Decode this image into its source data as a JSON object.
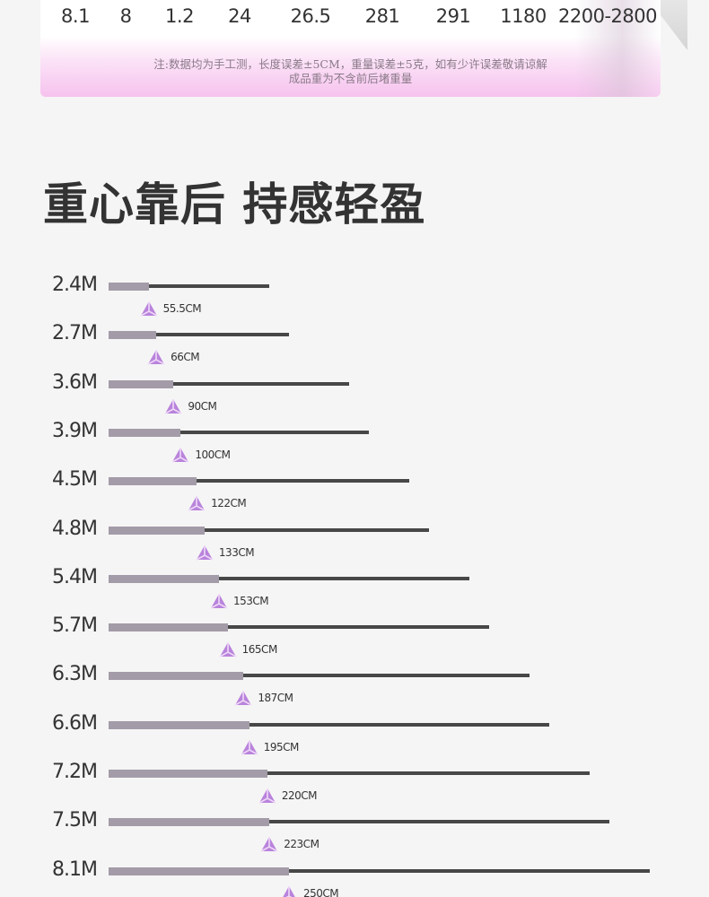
{
  "spec_table": {
    "values": [
      "8.1",
      "8",
      "1.2",
      "24",
      "26.5",
      "281",
      "291",
      "1180",
      "2200-2800"
    ],
    "note_line1": "注:数据均为手工测，长度误差±5CM，重量误差±5克，如有少许误差敬请谅解",
    "note_line2": "成品重为不含前后堵重量"
  },
  "headline": "重心靠后 持感轻盈",
  "colors": {
    "accent_pink": "#f6c2ee",
    "marker_purple": "#b983dc",
    "bar_front": "#a39ba7",
    "bar_total": "#474747",
    "text_dark": "#333333"
  },
  "chart_data": {
    "type": "bar",
    "title": "重心靠后 持感轻盈",
    "rows": [
      {
        "length": "2.4M",
        "balance": "55.5CM",
        "length_m": 2.4,
        "balance_cm": 55.5
      },
      {
        "length": "2.7M",
        "balance": "66CM",
        "length_m": 2.7,
        "balance_cm": 66
      },
      {
        "length": "3.6M",
        "balance": "90CM",
        "length_m": 3.6,
        "balance_cm": 90
      },
      {
        "length": "3.9M",
        "balance": "100CM",
        "length_m": 3.9,
        "balance_cm": 100
      },
      {
        "length": "4.5M",
        "balance": "122CM",
        "length_m": 4.5,
        "balance_cm": 122
      },
      {
        "length": "4.8M",
        "balance": "133CM",
        "length_m": 4.8,
        "balance_cm": 133
      },
      {
        "length": "5.4M",
        "balance": "153CM",
        "length_m": 5.4,
        "balance_cm": 153
      },
      {
        "length": "5.7M",
        "balance": "165CM",
        "length_m": 5.7,
        "balance_cm": 165
      },
      {
        "length": "6.3M",
        "balance": "187CM",
        "length_m": 6.3,
        "balance_cm": 187
      },
      {
        "length": "6.6M",
        "balance": "195CM",
        "length_m": 6.6,
        "balance_cm": 195
      },
      {
        "length": "7.2M",
        "balance": "220CM",
        "length_m": 7.2,
        "balance_cm": 220
      },
      {
        "length": "7.5M",
        "balance": "223CM",
        "length_m": 7.5,
        "balance_cm": 223
      },
      {
        "length": "8.1M",
        "balance": "250CM",
        "length_m": 8.1,
        "balance_cm": 250
      }
    ],
    "marker_icon": "triangle-balance-icon"
  }
}
